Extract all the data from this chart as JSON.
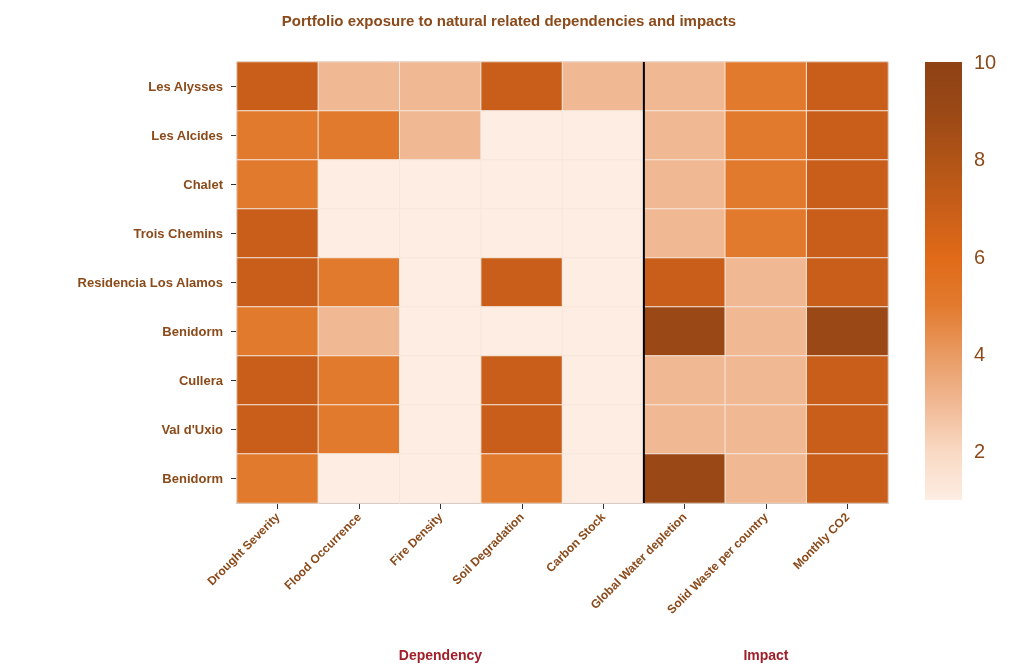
{
  "chart_data": {
    "type": "heatmap",
    "title": "Portfolio exposure to natural related dependencies and impacts",
    "categories": [
      "Drought Severity",
      "Flood Occurrence",
      "Fire Density",
      "Soil Degradation",
      "Carbon Stock",
      "Global Water depletion",
      "Solid Waste per country",
      "Monthly CO2"
    ],
    "y_categories": [
      "Les Alysses",
      "Les Alcides",
      "Chalet",
      "Trois Chemins",
      "Residencia Los Alamos",
      "Benidorm",
      "Cullera",
      "Val d'Uxio",
      "Benidorm"
    ],
    "cells": [
      [
        7,
        3,
        3,
        7,
        3,
        3,
        5,
        7
      ],
      [
        5,
        5,
        3,
        1,
        1,
        3,
        5,
        7
      ],
      [
        5,
        1,
        1,
        1,
        1,
        3,
        5,
        7
      ],
      [
        7,
        1,
        1,
        1,
        1,
        3,
        5,
        7
      ],
      [
        7,
        5,
        1,
        7,
        1,
        7,
        3,
        7
      ],
      [
        5,
        3,
        1,
        1,
        1,
        9,
        3,
        9
      ],
      [
        7,
        5,
        1,
        7,
        1,
        3,
        3,
        7
      ],
      [
        7,
        5,
        1,
        7,
        1,
        3,
        3,
        7
      ],
      [
        5,
        1,
        1,
        5,
        1,
        9,
        3,
        7
      ]
    ],
    "clim": [
      1,
      10
    ],
    "cticks": [
      2,
      4,
      6,
      8,
      10
    ],
    "annotations": [
      "Dependency",
      "Impact"
    ]
  }
}
